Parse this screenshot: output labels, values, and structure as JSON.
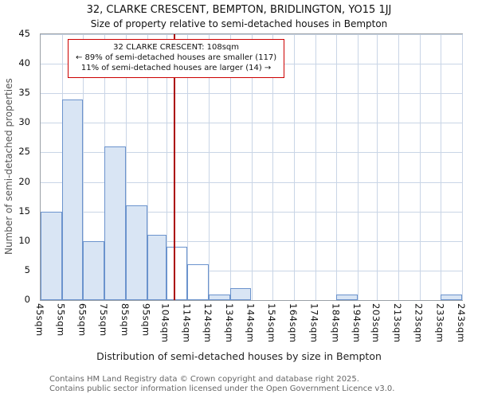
{
  "chart_data": {
    "type": "bar",
    "title": "32, CLARKE CRESCENT, BEMPTON, BRIDLINGTON, YO15 1JJ",
    "subtitle": "Size of property relative to semi-detached houses in Bempton",
    "xlabel": "Distribution of semi-detached houses by size in Bempton",
    "ylabel": "Number of semi-detached properties",
    "categories": [
      "45sqm",
      "55sqm",
      "65sqm",
      "75sqm",
      "85sqm",
      "95sqm",
      "104sqm",
      "114sqm",
      "124sqm",
      "134sqm",
      "144sqm",
      "154sqm",
      "164sqm",
      "174sqm",
      "184sqm",
      "194sqm",
      "203sqm",
      "213sqm",
      "223sqm",
      "233sqm",
      "243sqm"
    ],
    "bin_edges": [
      45,
      55,
      65,
      75,
      85,
      95,
      104,
      114,
      124,
      134,
      144,
      154,
      164,
      174,
      184,
      194,
      203,
      213,
      223,
      233,
      243
    ],
    "values": [
      15,
      34,
      10,
      26,
      16,
      11,
      9,
      6,
      1,
      2,
      0,
      0,
      0,
      0,
      1,
      0,
      0,
      0,
      0,
      1
    ],
    "yticks": [
      0,
      5,
      10,
      15,
      20,
      25,
      30,
      35,
      40,
      45
    ],
    "ylim": [
      0,
      45
    ],
    "grid": true,
    "legend": "none",
    "marker": {
      "value_sqm": 108,
      "color": "#aa0000"
    },
    "annotation": {
      "line1": "32 CLARKE CRESCENT: 108sqm",
      "line2": "← 89% of semi-detached houses are smaller (117)",
      "line3": "11% of semi-detached houses are larger (14) →",
      "border_color": "#cc0000"
    },
    "colors": {
      "bar_fill": "#d9e5f4",
      "bar_border": "#6b93cd",
      "highlight_fill": "#ffffff",
      "grid": "#c9d5e6"
    },
    "highlight_bins": [
      6,
      7
    ]
  },
  "footer": {
    "line1": "Contains HM Land Registry data © Crown copyright and database right 2025.",
    "line2": "Contains public sector information licensed under the Open Government Licence v3.0."
  }
}
